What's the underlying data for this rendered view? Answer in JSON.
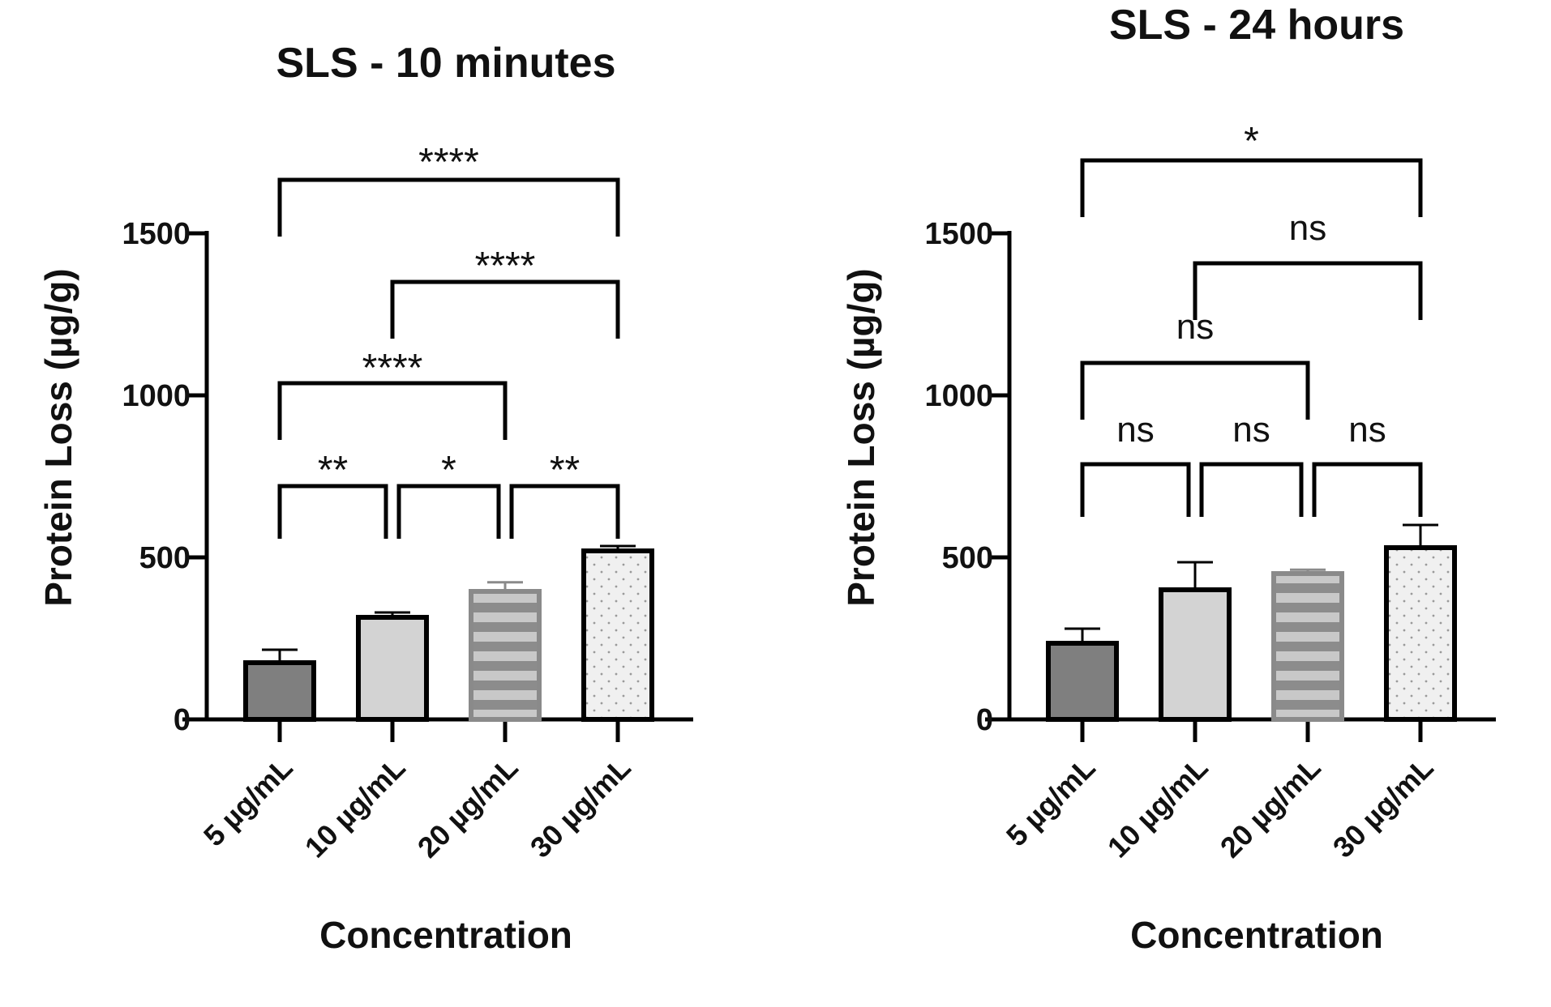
{
  "colors": {
    "axis": "#000000",
    "bar_5": "#7f7f7f",
    "bar_10": "#d3d3d3",
    "bar_20_fill": "#c8c8c8",
    "bar_20_stripe": "#8c8c8c",
    "bar_20_border": "#8a8a8a",
    "bar_30": "#f0f0f0",
    "bar_30_dots": "#9a9a9a"
  },
  "chart_data": [
    {
      "type": "bar",
      "title": "SLS - 10 minutes",
      "xlabel": "Concentration",
      "ylabel": "Protein Loss (µg/g)",
      "ylim": [
        0,
        1500
      ],
      "yticks": [
        0,
        500,
        1000,
        1500
      ],
      "categories": [
        "5 µg/mL",
        "10 µg/mL",
        "20 µg/mL",
        "30 µg/mL"
      ],
      "values": [
        175,
        315,
        395,
        520
      ],
      "errors": [
        40,
        15,
        28,
        15
      ],
      "bar_patterns": [
        "solid-dark",
        "solid-light",
        "horizontal-stripes",
        "dots"
      ],
      "significance": [
        {
          "from": 0,
          "to": 3,
          "label": "****"
        },
        {
          "from": 1,
          "to": 3,
          "label": "****"
        },
        {
          "from": 0,
          "to": 2,
          "label": "****"
        },
        {
          "from": 0,
          "to": 1,
          "label": "**"
        },
        {
          "from": 1,
          "to": 2,
          "label": "*"
        },
        {
          "from": 2,
          "to": 3,
          "label": "**"
        }
      ]
    },
    {
      "type": "bar",
      "title": "SLS - 24 hours",
      "xlabel": "Concentration",
      "ylabel": "Protein Loss (µg/g)",
      "ylim": [
        0,
        1500
      ],
      "yticks": [
        0,
        500,
        1000,
        1500
      ],
      "categories": [
        "5 µg/mL",
        "10 µg/mL",
        "20 µg/mL",
        "30 µg/mL"
      ],
      "values": [
        235,
        400,
        450,
        530
      ],
      "errors": [
        45,
        85,
        12,
        70
      ],
      "bar_patterns": [
        "solid-dark",
        "solid-light",
        "horizontal-stripes",
        "dots"
      ],
      "significance": [
        {
          "from": 0,
          "to": 3,
          "label": "*"
        },
        {
          "from": 1,
          "to": 3,
          "label": "ns"
        },
        {
          "from": 0,
          "to": 2,
          "label": "ns"
        },
        {
          "from": 0,
          "to": 1,
          "label": "ns"
        },
        {
          "from": 1,
          "to": 2,
          "label": "ns"
        },
        {
          "from": 2,
          "to": 3,
          "label": "ns"
        }
      ]
    }
  ]
}
